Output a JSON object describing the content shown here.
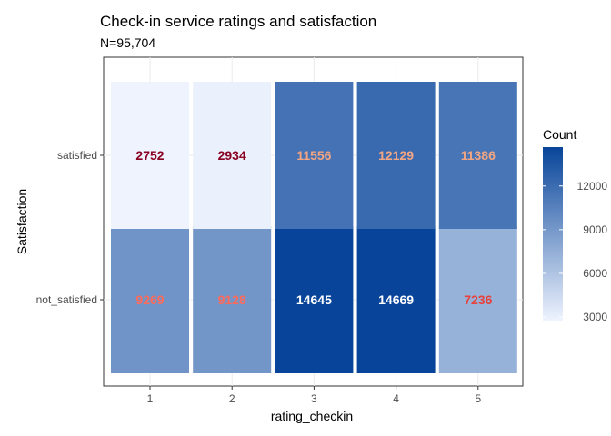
{
  "chart_data": {
    "type": "heatmap",
    "title": "Check-in service ratings and satisfaction",
    "subtitle": "N=95,704",
    "xlabel": "rating_checkin",
    "ylabel": "Satisfaction",
    "x": [
      "1",
      "2",
      "3",
      "4",
      "5"
    ],
    "y": [
      "not_satisfied",
      "satisfied"
    ],
    "values": [
      [
        9269,
        9128,
        14645,
        14669,
        7236
      ],
      [
        2752,
        2934,
        11556,
        12129,
        11386
      ]
    ],
    "label_colors": [
      [
        "#ff6b5b",
        "#ff6b5b",
        "#ffffff",
        "#ffffff",
        "#e8403a"
      ],
      [
        "#8b0020",
        "#8b0020",
        "#f4a582",
        "#f4a582",
        "#f4a582"
      ]
    ],
    "color_scale": {
      "low": "#eef3fe",
      "high": "#08459a",
      "min": 2752,
      "max": 14669
    },
    "legend": {
      "title": "Count",
      "ticks": [
        3000,
        6000,
        9000,
        12000
      ],
      "placement": "right"
    },
    "grid": true
  }
}
